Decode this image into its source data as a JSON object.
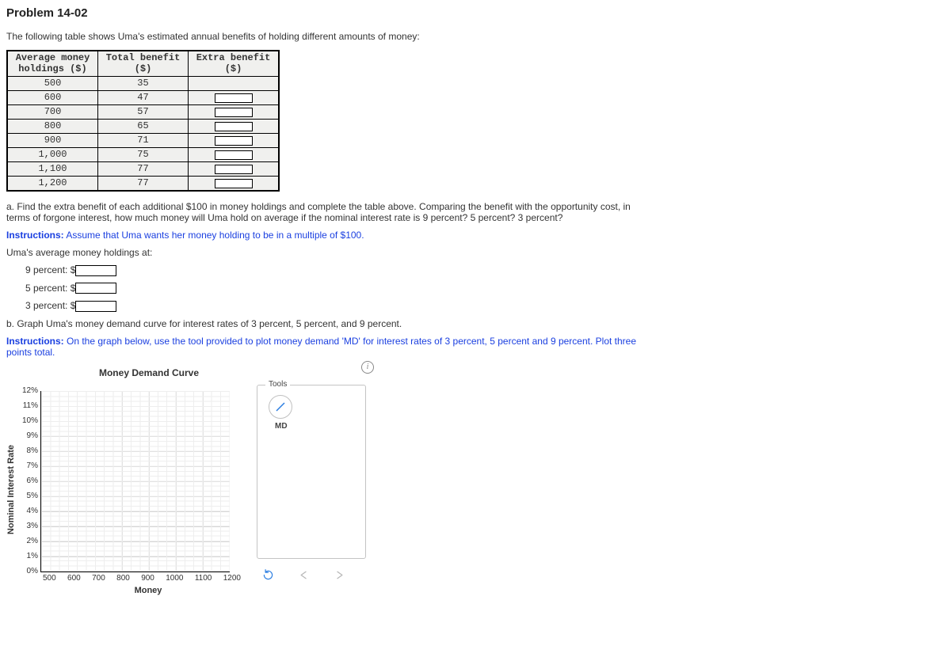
{
  "title": "Problem 14-02",
  "intro_text": "The following table shows Uma's estimated annual benefits of holding different amounts of money:",
  "table": {
    "headers": {
      "col0": "Average money\nholdings ($)",
      "col1": "Total benefit\n($)",
      "col2": "Extra benefit\n($)"
    },
    "rows": [
      {
        "holdings": "500",
        "total": "35",
        "has_input": false
      },
      {
        "holdings": "600",
        "total": "47",
        "has_input": true
      },
      {
        "holdings": "700",
        "total": "57",
        "has_input": true
      },
      {
        "holdings": "800",
        "total": "65",
        "has_input": true
      },
      {
        "holdings": "900",
        "total": "71",
        "has_input": true
      },
      {
        "holdings": "1,000",
        "total": "75",
        "has_input": true
      },
      {
        "holdings": "1,100",
        "total": "77",
        "has_input": true
      },
      {
        "holdings": "1,200",
        "total": "77",
        "has_input": true
      }
    ]
  },
  "part_a": "a.  Find the extra benefit of each additional $100 in money holdings and complete the table above. Comparing the benefit with the opportunity cost, in terms of forgone interest, how much money will Uma hold on average if the nominal interest rate is 9 percent? 5 percent? 3 percent?",
  "instructions_a_label": "Instructions:",
  "instructions_a_text": " Assume that Uma wants her money holding to be in a multiple of $100.",
  "holdings_at_label": "Uma's average money holdings at:",
  "answers": [
    {
      "label": "9 percent:  $"
    },
    {
      "label": "5 percent:  $"
    },
    {
      "label": "3 percent:  $"
    }
  ],
  "part_b": "b.  Graph Uma's money demand curve for interest rates of 3 percent, 5 percent, and 9 percent.",
  "instructions_b_label": "Instructions:",
  "instructions_b_text": " On the graph below, use the tool provided to plot money demand 'MD' for interest rates of 3 percent, 5 percent and 9 percent. Plot three points total.",
  "chart": {
    "title": "Money Demand Curve",
    "y_label": "Nominal Interest Rate",
    "x_label": "Money",
    "y_ticks": [
      "12%",
      "11%",
      "10%",
      "9%",
      "8%",
      "7%",
      "6%",
      "5%",
      "4%",
      "3%",
      "2%",
      "1%",
      "0%"
    ],
    "x_ticks": [
      "500",
      "600",
      "700",
      "800",
      "900",
      "1000",
      "1100",
      "1200"
    ]
  },
  "tools": {
    "legend": "Tools",
    "md_label": "MD"
  }
}
